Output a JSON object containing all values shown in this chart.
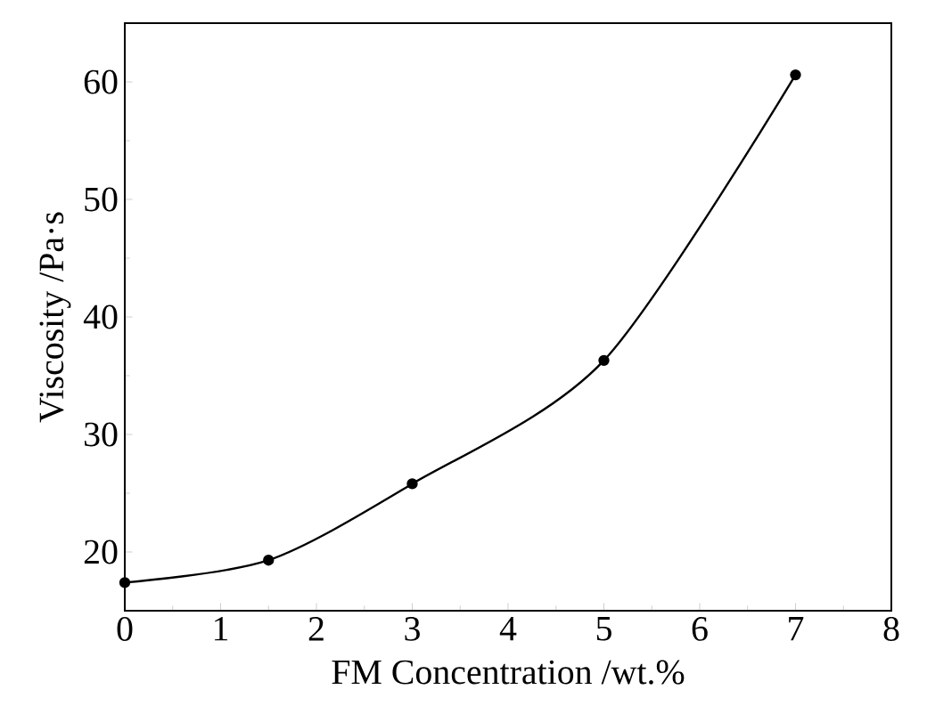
{
  "chart_data": {
    "type": "line",
    "xlabel": "FM Concentration /wt.%",
    "ylabel": "Viscosity /Pa·s",
    "x": [
      0,
      1.5,
      3,
      5,
      7
    ],
    "series": [
      {
        "color": "#000000",
        "values": [
          17.4,
          19.3,
          25.8,
          36.3,
          60.6
        ]
      }
    ],
    "xlim": [
      0,
      8
    ],
    "xticks": [
      0,
      1,
      2,
      3,
      4,
      5,
      6,
      7,
      8
    ],
    "ylim": [
      15,
      65
    ],
    "yticks": [
      20,
      30,
      40,
      50,
      60
    ],
    "marker": "circle",
    "line_style": "solid"
  }
}
